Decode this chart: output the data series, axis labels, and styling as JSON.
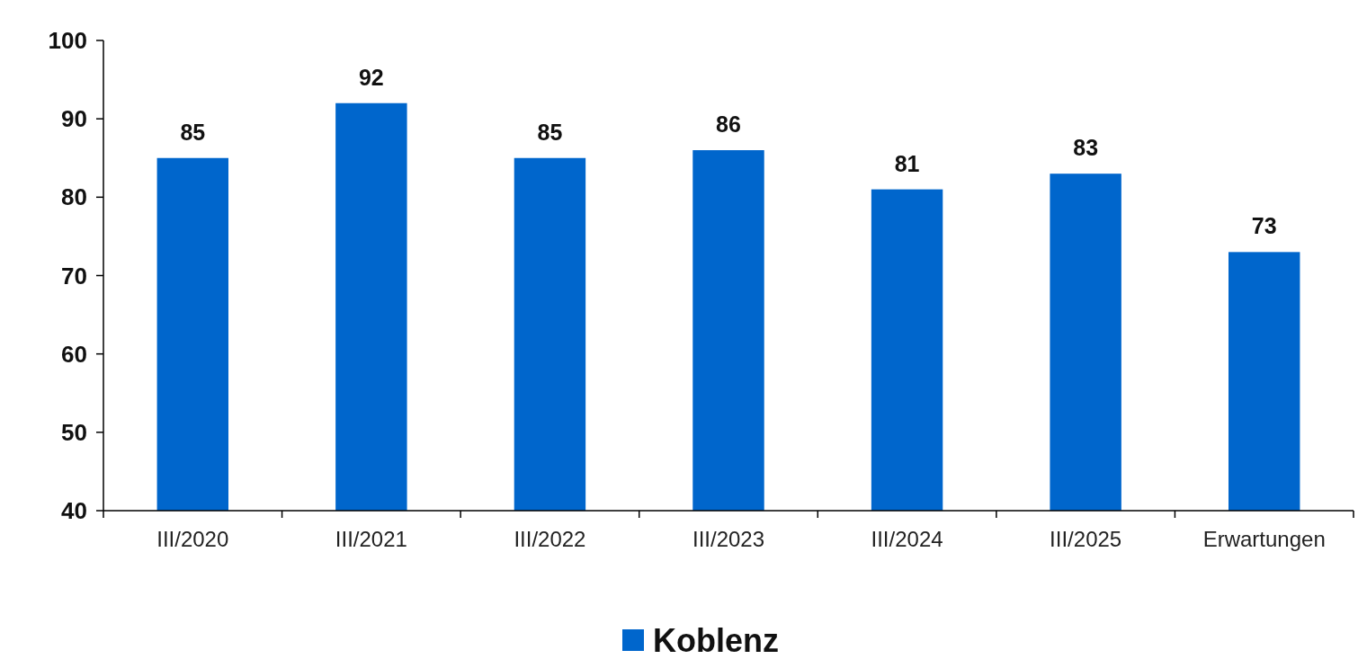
{
  "chart_data": {
    "type": "bar",
    "categories": [
      "III/2020",
      "III/2021",
      "III/2022",
      "III/2023",
      "III/2024",
      "III/2025",
      "Erwartungen"
    ],
    "series": [
      {
        "name": "Koblenz",
        "color": "#0066cc",
        "values": [
          85,
          92,
          85,
          86,
          81,
          83,
          73
        ]
      }
    ],
    "ylim": [
      40,
      100
    ],
    "yticks": [
      40,
      50,
      60,
      70,
      80,
      90,
      100
    ],
    "data_labels": true,
    "legend": "bottom",
    "grid": false
  }
}
